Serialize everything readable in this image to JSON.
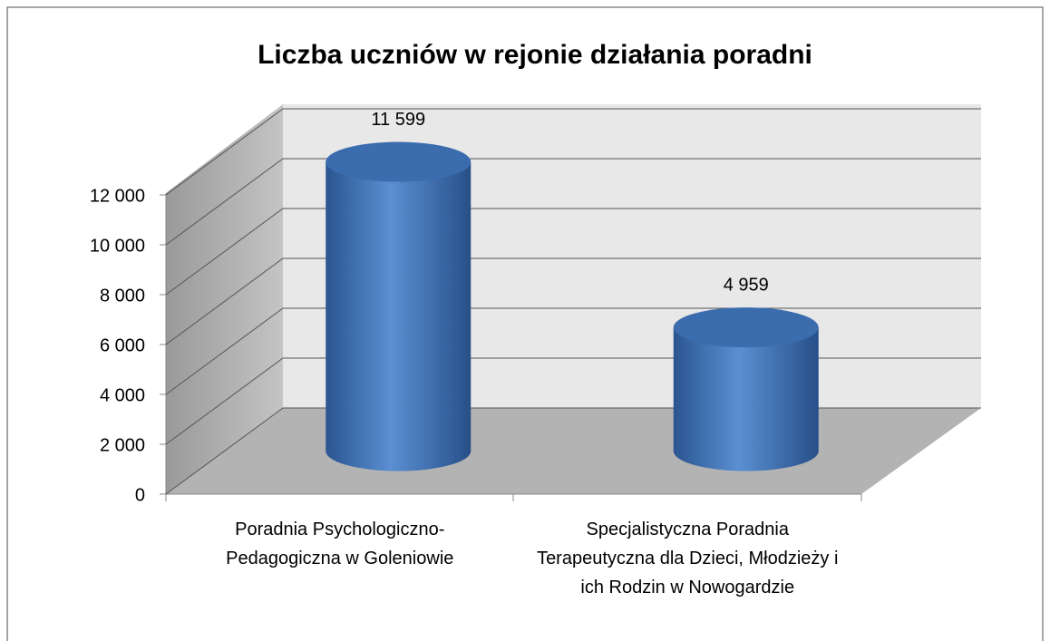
{
  "chart_data": {
    "type": "bar3d",
    "title": "Liczba uczniów w rejonie działania poradni",
    "categories": [
      "Poradnia Psychologiczno-Pedagogiczna w Goleniowie",
      "Specjalistyczna Poradnia Terapeutyczna dla Dzieci, Młodzieży i ich Rodzin w Nowogardzie"
    ],
    "values": [
      11599,
      4959
    ],
    "value_labels": [
      "11 599",
      "4 959"
    ],
    "color": "#4f81bd",
    "ylim": [
      0,
      12000
    ],
    "yticks": [
      0,
      {
        "value": 2000,
        "label": "2 000"
      },
      {
        "value": 4000,
        "label": "4 000"
      },
      {
        "value": 6000,
        "label": "6 000"
      },
      {
        "value": 8000,
        "label": "8 000"
      },
      {
        "value": 10000,
        "label": "10 000"
      },
      {
        "value": 12000,
        "label": "12 000"
      }
    ],
    "grid": true
  }
}
